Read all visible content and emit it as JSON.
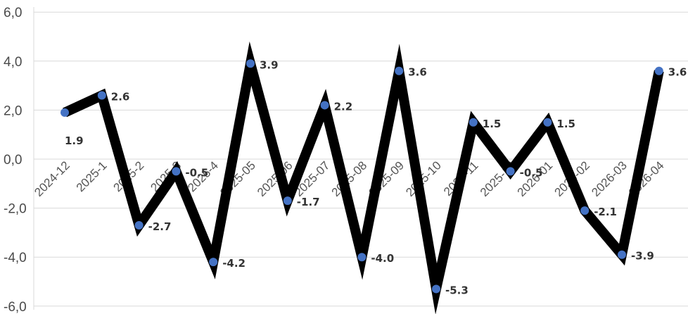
{
  "chart_data": {
    "type": "line",
    "categories": [
      "2024-12",
      "2025-1",
      "2025-2",
      "2025-3",
      "2025-4",
      "2025-05",
      "2025-06",
      "2025-07",
      "2025-08",
      "2025-09",
      "2025-10",
      "2025-11",
      "2025-12",
      "2026-01",
      "2026-02",
      "2026-03",
      "2026-04"
    ],
    "values": [
      1.9,
      2.6,
      -2.7,
      -0.5,
      -4.2,
      3.9,
      -1.7,
      2.2,
      -4.0,
      3.6,
      -5.3,
      1.5,
      -0.5,
      1.5,
      -2.1,
      -3.9,
      3.6
    ],
    "data_labels": [
      "1.9",
      "2.6",
      "-2.7",
      "-0.5",
      "-4.2",
      "3.9",
      "-1.7",
      "2.2",
      "-4.0",
      "3.6",
      "-5.3",
      "1.5",
      "-0.5",
      "1.5",
      "-2.1",
      "-3.9",
      "3.6"
    ],
    "y_ticks": [
      "6,0",
      "4,0",
      "2,0",
      "0,0",
      "-2,0",
      "-4,0",
      "-6,0"
    ],
    "ylim": [
      -6,
      6
    ],
    "grid": true,
    "legend": "none",
    "colors": {
      "line": "#000000",
      "marker": "#4472c4",
      "grid": "#d9d9d9"
    }
  }
}
